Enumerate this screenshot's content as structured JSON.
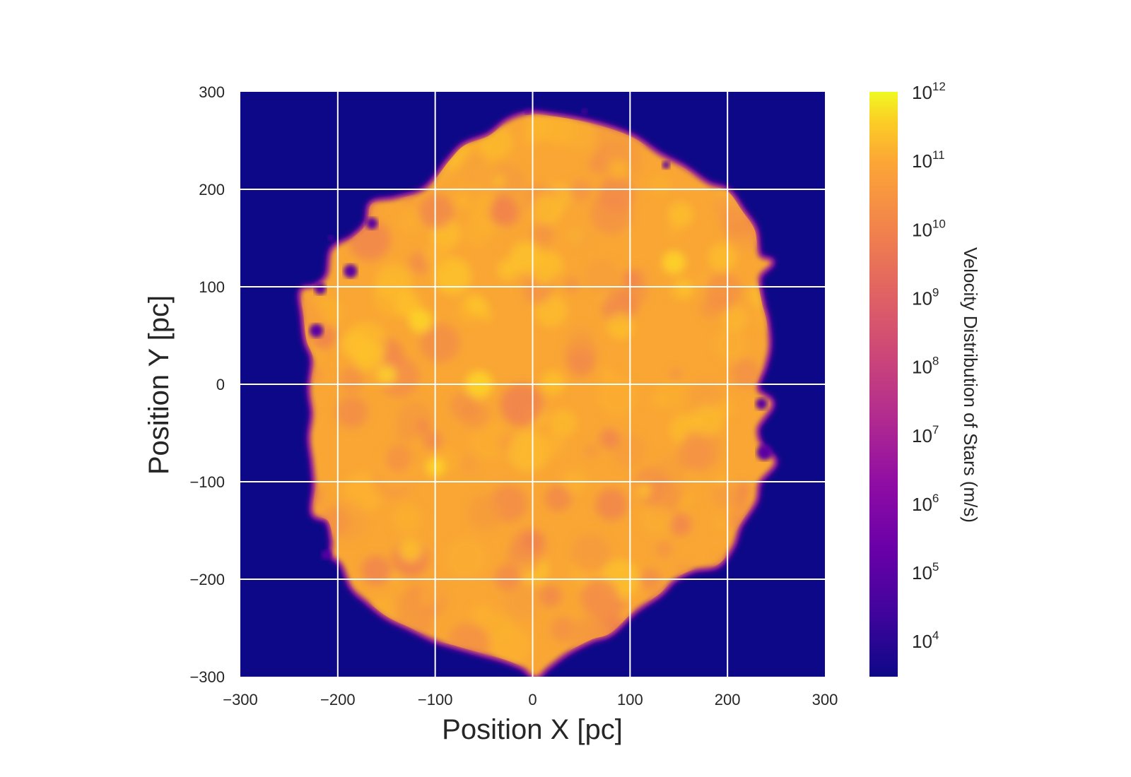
{
  "chart_data": {
    "type": "heatmap",
    "xlabel": "Position X [pc]",
    "ylabel": "Position Y [pc]",
    "xlim": [
      -300,
      300
    ],
    "ylim": [
      -300,
      300
    ],
    "x_ticks": [
      -300,
      -200,
      -100,
      0,
      100,
      200,
      300
    ],
    "y_ticks": [
      -300,
      -200,
      -100,
      0,
      100,
      200,
      300
    ],
    "x_tick_labels": [
      "−300",
      "−200",
      "−100",
      "0",
      "100",
      "200",
      "300"
    ],
    "y_tick_labels": [
      "−300",
      "−200",
      "−100",
      "0",
      "100",
      "200",
      "300"
    ],
    "grid": true,
    "colormap": "plasma",
    "background_color": "#0d0887",
    "grid_color": "#ffffff",
    "colorbar": {
      "label": "Velocity Distribution of Stars (m/s)",
      "scale": "log",
      "range": [
        3000,
        1000000000000
      ],
      "tick_exponents": [
        4,
        5,
        6,
        7,
        8,
        9,
        10,
        11,
        12
      ],
      "tick_bases": [
        "10",
        "10",
        "10",
        "10",
        "10",
        "10",
        "10",
        "10",
        "10"
      ],
      "tick_exponent_labels": [
        "4",
        "5",
        "6",
        "7",
        "8",
        "9",
        "10",
        "11",
        "12"
      ]
    },
    "blob": {
      "description_value_range_log10": [
        9.0,
        11.3
      ],
      "boundary": [
        [
          -3,
          277
        ],
        [
          20,
          275
        ],
        [
          50,
          270
        ],
        [
          80,
          262
        ],
        [
          105,
          252
        ],
        [
          130,
          235
        ],
        [
          155,
          222
        ],
        [
          180,
          205
        ],
        [
          200,
          198
        ],
        [
          215,
          178
        ],
        [
          228,
          158
        ],
        [
          232,
          132
        ],
        [
          245,
          125
        ],
        [
          232,
          110
        ],
        [
          235,
          85
        ],
        [
          240,
          65
        ],
        [
          242,
          40
        ],
        [
          238,
          20
        ],
        [
          230,
          -5
        ],
        [
          245,
          -20
        ],
        [
          230,
          -45
        ],
        [
          235,
          -65
        ],
        [
          248,
          -80
        ],
        [
          232,
          -100
        ],
        [
          228,
          -120
        ],
        [
          212,
          -145
        ],
        [
          205,
          -165
        ],
        [
          190,
          -185
        ],
        [
          165,
          -190
        ],
        [
          145,
          -200
        ],
        [
          130,
          -215
        ],
        [
          105,
          -232
        ],
        [
          80,
          -255
        ],
        [
          60,
          -262
        ],
        [
          35,
          -275
        ],
        [
          15,
          -290
        ],
        [
          3,
          -300
        ],
        [
          -10,
          -290
        ],
        [
          -30,
          -282
        ],
        [
          -55,
          -275
        ],
        [
          -80,
          -268
        ],
        [
          -100,
          -262
        ],
        [
          -125,
          -250
        ],
        [
          -150,
          -238
        ],
        [
          -170,
          -222
        ],
        [
          -185,
          -208
        ],
        [
          -195,
          -185
        ],
        [
          -205,
          -175
        ],
        [
          -205,
          -160
        ],
        [
          -210,
          -140
        ],
        [
          -225,
          -132
        ],
        [
          -223,
          -105
        ],
        [
          -225,
          -80
        ],
        [
          -228,
          -55
        ],
        [
          -225,
          -30
        ],
        [
          -228,
          -5
        ],
        [
          -225,
          25
        ],
        [
          -232,
          45
        ],
        [
          -235,
          70
        ],
        [
          -237,
          95
        ],
        [
          -222,
          100
        ],
        [
          -210,
          112
        ],
        [
          -205,
          138
        ],
        [
          -185,
          150
        ],
        [
          -170,
          165
        ],
        [
          -165,
          185
        ],
        [
          -140,
          190
        ],
        [
          -110,
          200
        ],
        [
          -85,
          230
        ],
        [
          -70,
          245
        ],
        [
          -45,
          255
        ],
        [
          -25,
          270
        ]
      ],
      "dark_spots": [
        [
          -187,
          116,
          7
        ],
        [
          -222,
          55,
          7
        ],
        [
          -218,
          98,
          6
        ],
        [
          -207,
          150,
          3
        ],
        [
          238,
          -70,
          8
        ],
        [
          235,
          -20,
          6
        ],
        [
          -5,
          280,
          3
        ],
        [
          53,
          280,
          3
        ],
        [
          137,
          225,
          4
        ],
        [
          -165,
          165,
          6
        ],
        [
          -212,
          -175,
          5
        ]
      ]
    }
  }
}
